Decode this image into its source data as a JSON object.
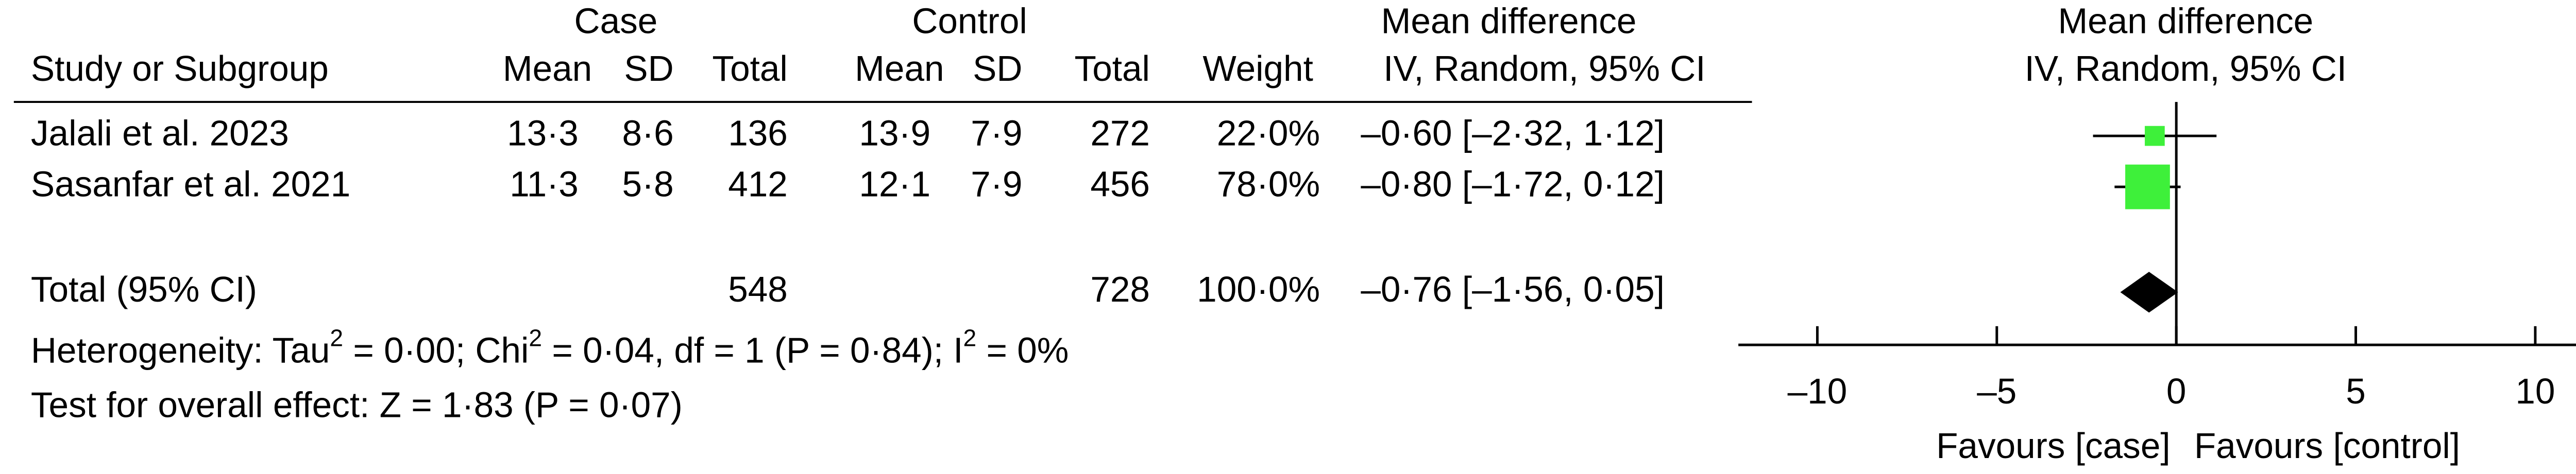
{
  "chart_data": {
    "type": "forest",
    "header": {
      "case": "Case",
      "control": "Control",
      "study": "Study or Subgroup",
      "mean": "Mean",
      "sd": "SD",
      "total": "Total",
      "weight": "Weight",
      "md": "Mean difference",
      "method": "IV, Random, 95% CI",
      "plot_md": "Mean difference",
      "plot_method": "IV, Random, 95% CI"
    },
    "rows": [
      {
        "study": "Jalali et al. 2023",
        "case_mean": "13·3",
        "case_sd": "8·6",
        "case_total": "136",
        "control_mean": "13·9",
        "control_sd": "7·9",
        "control_total": "272"
      },
      {
        "study": "Sasanfar et al. 2021",
        "case_mean": "11·3",
        "case_sd": "5·8",
        "case_total": "412",
        "control_mean": "12·1",
        "control_sd": "7·9",
        "control_total": "456"
      },
      {
        "study": "Total (95% CI)",
        "case_total": "548",
        "control_total": "728"
      }
    ],
    "values": [
      -0.6,
      -0.8,
      -0.76
    ],
    "lower": [
      -2.32,
      -1.72,
      -1.56
    ],
    "upper": [
      1.12,
      0.12,
      0.05
    ],
    "weights": [
      22.0,
      78.0,
      100.0
    ],
    "weight_labels": [
      "22·0%",
      "78·0%",
      "100·0%"
    ],
    "value_labels": [
      "–0·60 [–2·32, 1·12]",
      "–0·80 [–1·72, 0·12]",
      "–0·76 [–1·56, 0·05]"
    ],
    "heterogeneity": [
      "Heterogeneity: Tau",
      "2",
      " = 0·00; Chi",
      "2",
      " = 0·04, df = 1 (P = 0·84); I",
      "2",
      " = 0%"
    ],
    "overall": "Test for overall effect: Z = 1·83 (P = 0·07)",
    "xlim": [
      -12.2,
      12.2
    ],
    "xticks": [
      {
        "value": -10,
        "label": "–10"
      },
      {
        "value": -5,
        "label": "–5"
      },
      0,
      5,
      10
    ],
    "favours_left": "Favours [case]",
    "favours_right": "Favours [control]",
    "square_color": "#3ef03a",
    "diamond_color": "#000000"
  }
}
